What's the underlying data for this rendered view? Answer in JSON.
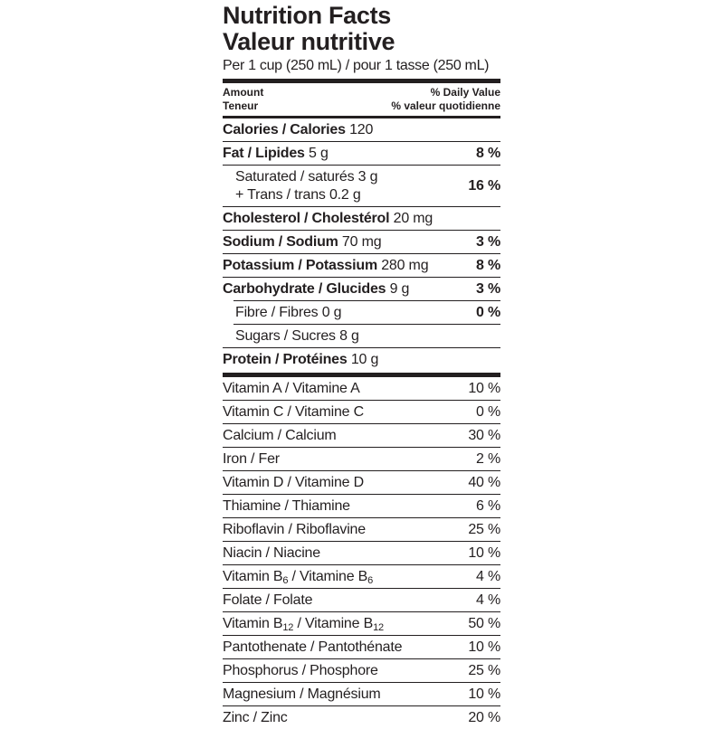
{
  "title_en": "Nutrition Facts",
  "title_fr": "Valeur nutritive",
  "serving": "Per 1 cup (250 mL) / pour 1 tasse (250 mL)",
  "header": {
    "amount": "Amount",
    "teneur": "Teneur",
    "dv_en": "% Daily Value",
    "dv_fr": "% valeur quotidienne"
  },
  "calories": {
    "label": "Calories / Calories",
    "value": "120"
  },
  "fat": {
    "label": "Fat / Lipides",
    "value": "5 g",
    "dv": "8 %"
  },
  "saturated": {
    "line1": "Saturated / saturés 3 g",
    "line2": "+ Trans / trans 0.2 g",
    "dv": "16 %"
  },
  "cholesterol": {
    "label": "Cholesterol / Cholestérol",
    "value": "20 mg"
  },
  "sodium": {
    "label": "Sodium / Sodium",
    "value": "70 mg",
    "dv": "3 %"
  },
  "potassium": {
    "label": "Potassium / Potassium",
    "value": "280 mg",
    "dv": "8 %"
  },
  "carbohydrate": {
    "label": "Carbohydrate / Glucides",
    "value": "9 g",
    "dv": "3 %"
  },
  "fibre": {
    "label": "Fibre / Fibres 0 g",
    "dv": "0 %"
  },
  "sugars": {
    "label": "Sugars / Sucres 8 g"
  },
  "protein": {
    "label": "Protein / Protéines",
    "value": "10 g"
  },
  "vitamins": [
    {
      "label": "Vitamin A / Vitamine A",
      "dv": "10 %"
    },
    {
      "label": "Vitamin C / Vitamine C",
      "dv": "0 %"
    },
    {
      "label": "Calcium / Calcium",
      "dv": "30 %"
    },
    {
      "label": "Iron / Fer",
      "dv": "2 %"
    },
    {
      "label": "Vitamin D / Vitamine D",
      "dv": "40 %"
    },
    {
      "label": "Thiamine / Thiamine",
      "dv": "6 %"
    },
    {
      "label": "Riboflavin / Riboflavine",
      "dv": "25 %"
    },
    {
      "label": "Niacin / Niacine",
      "dv": "10 %"
    }
  ],
  "b6": {
    "a": "Vitamin B",
    "sub1": "6",
    "b": " / Vitamine B",
    "sub2": "6",
    "dv": "4 %"
  },
  "folate": {
    "label": "Folate / Folate",
    "dv": "4 %"
  },
  "b12": {
    "a": "Vitamin B",
    "sub1": "12",
    "b": " / Vitamine B",
    "sub2": "12",
    "dv": "50 %"
  },
  "vitamins2": [
    {
      "label": "Pantothenate / Pantothénate",
      "dv": "10 %"
    },
    {
      "label": "Phosphorus / Phosphore",
      "dv": "25 %"
    },
    {
      "label": "Magnesium / Magnésium",
      "dv": "10 %"
    },
    {
      "label": "Zinc / Zinc",
      "dv": "20 %"
    }
  ]
}
